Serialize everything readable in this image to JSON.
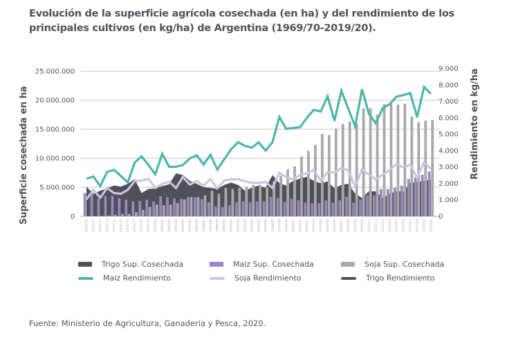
{
  "title": "Evolución de la superficie agrícola cosechada (en ha) y del rendimiento de los principales cultivos (en kg/ha) de Argentina (1969/70-2019/20).",
  "source": "Fuente: Ministerio de Agricultura, Ganadería y Pesca, 2020.",
  "chart_data": {
    "type": "bar",
    "title": "Evolución de la superficie agrícola cosechada (en ha) y del rendimiento de los principales cultivos (en kg/ha) de Argentina (1969/70-2019/20).",
    "ylabel": "Superficie cosechada en ha",
    "y2label": "Rendimiento en kg/ha",
    "ylim": [
      0,
      25000000
    ],
    "y2lim": [
      0,
      9000
    ],
    "yticks": [
      "0",
      "5.000.000",
      "10.000.000",
      "15.000.000",
      "20.000.000",
      "25.000.000"
    ],
    "y2ticks": [
      "0",
      "1.000",
      "2.000",
      "3.000",
      "4.000",
      "5.000",
      "6.000",
      "7.000",
      "8.000",
      "9.000"
    ],
    "grid": true,
    "legend_position": "bottom",
    "categories": [
      "1969/70",
      "1970/71",
      "1971/72",
      "1972/73",
      "1973/74",
      "1974/75",
      "1975/76",
      "1976/77",
      "1977/78",
      "1978/79",
      "1979/80",
      "1980/81",
      "1981/82",
      "1982/83",
      "1983/84",
      "1984/85",
      "1985/86",
      "1986/87",
      "1987/88",
      "1988/89",
      "1989/90",
      "1990/91",
      "1991/92",
      "1992/93",
      "1993/94",
      "1994/95",
      "1995/96",
      "1996/97",
      "1997/98",
      "1998/99",
      "1999/00",
      "2000/01",
      "2001/02",
      "2002/03",
      "2003/04",
      "2004/05",
      "2005/06",
      "2006/07",
      "2007/08",
      "2008/09",
      "2009/10",
      "2010/11",
      "2011/12",
      "2012/13",
      "2013/14",
      "2014/15",
      "2015/16",
      "2016/17",
      "2017/18",
      "2018/19",
      "2019/20"
    ],
    "series": [
      {
        "name": "Trigo Sup. Cosechada",
        "kind": "area",
        "axis": "left",
        "color": "#4f5159",
        "values": [
          5100000,
          3850000,
          4400000,
          4800000,
          5300000,
          5100000,
          5600000,
          6400000,
          4000000,
          4700000,
          4800000,
          5200000,
          5500000,
          7400000,
          7100000,
          6100000,
          5600000,
          5000000,
          4900000,
          4700000,
          5400000,
          5800000,
          5400000,
          4400000,
          4900000,
          5300000,
          4900000,
          7100000,
          5700000,
          5300000,
          6100000,
          6500000,
          6800000,
          6100000,
          5700000,
          6000000,
          4800000,
          5400000,
          5600000,
          3900000,
          3150000,
          4300000,
          4300000,
          3150000,
          3900000,
          4300000,
          4300000,
          5700000,
          5900000,
          6100000,
          6300000
        ]
      },
      {
        "name": "Maiz Sup. Cosechada",
        "kind": "bar",
        "axis": "left",
        "color": "#9b86c2",
        "values": [
          4000000,
          4500000,
          3050000,
          3500000,
          3500000,
          3100000,
          2850000,
          2550000,
          2600000,
          2850000,
          2550000,
          3450000,
          3250000,
          3050000,
          3000000,
          3300000,
          3250000,
          2950000,
          2400000,
          1700000,
          1600000,
          1900000,
          2400000,
          2550000,
          2400000,
          2550000,
          2550000,
          3350000,
          3150000,
          2450000,
          3000000,
          2750000,
          2350000,
          2250000,
          2250000,
          2750000,
          2350000,
          2750000,
          3350000,
          2350000,
          2850000,
          3600000,
          3600000,
          4700000,
          4700000,
          4900000,
          5250000,
          6400000,
          6700000,
          7150000,
          7700000
        ]
      },
      {
        "name": "Soja Sup. Cosechada",
        "kind": "bar",
        "axis": "left",
        "color": "#a9a9a9",
        "values": [
          26000,
          30000,
          68000,
          120000,
          270000,
          390000,
          390000,
          700000,
          1100000,
          1600000,
          2000000,
          1880000,
          2000000,
          2300000,
          2900000,
          3300000,
          3300000,
          3600000,
          4400000,
          3900000,
          4900000,
          4700000,
          4900000,
          5100000,
          5400000,
          5400000,
          5000000,
          6000000,
          7000000,
          8100000,
          8600000,
          10300000,
          11300000,
          12300000,
          14200000,
          14000000,
          15100000,
          15900000,
          16300000,
          16000000,
          18600000,
          18600000,
          17500000,
          19300000,
          19400000,
          19250000,
          19400000,
          17200000,
          16200000,
          16500000,
          16600000
        ]
      },
      {
        "name": "Maiz Rendimiento",
        "kind": "line",
        "axis": "right",
        "color": "#4db6ac",
        "values": [
          2280,
          2420,
          1830,
          2700,
          2820,
          2450,
          2070,
          3260,
          3650,
          3120,
          2560,
          3800,
          3010,
          3010,
          3120,
          3520,
          3710,
          3150,
          3740,
          2840,
          3470,
          4080,
          4500,
          4290,
          4170,
          4500,
          4000,
          4500,
          6050,
          5320,
          5380,
          5420,
          5990,
          6480,
          6370,
          7300,
          5800,
          7640,
          6550,
          5470,
          7730,
          6230,
          5660,
          6580,
          6820,
          7280,
          7380,
          7500,
          6030,
          7870,
          7450
        ]
      },
      {
        "name": "Soja Rendimiento",
        "kind": "line",
        "axis": "right",
        "color": "#cfc3e3",
        "values": [
          1020,
          1610,
          1130,
          1720,
          1410,
          1370,
          1610,
          2140,
          2170,
          2280,
          1720,
          1970,
          2110,
          1720,
          2390,
          1930,
          2140,
          1860,
          2250,
          1690,
          2170,
          2250,
          2250,
          2140,
          2030,
          2030,
          2090,
          1720,
          2660,
          2370,
          2260,
          2510,
          2610,
          2800,
          2150,
          2680,
          2660,
          2940,
          2800,
          1810,
          2850,
          2540,
          2230,
          2540,
          2800,
          3180,
          2970,
          3140,
          2330,
          3280,
          2890
        ]
      },
      {
        "name": "Trigo Rendimiento",
        "kind": "line",
        "axis": "right",
        "color": "#4f5159"
      }
    ]
  },
  "legend": [
    {
      "label": "Trigo Sup. Cosechada",
      "color": "#4f5159",
      "type": "block"
    },
    {
      "label": "Maiz Sup. Cosechada",
      "color": "#9b86c2",
      "type": "block"
    },
    {
      "label": "Soja Sup. Cosechada",
      "color": "#a9a9a9",
      "type": "block"
    },
    {
      "label": "Maiz Rendimiento",
      "color": "#4db6ac",
      "type": "line"
    },
    {
      "label": "Soja Rendimiento",
      "color": "#cfc3e3",
      "type": "line"
    },
    {
      "label": "Trigo Rendimiento",
      "color": "#4f5159",
      "type": "line"
    }
  ]
}
